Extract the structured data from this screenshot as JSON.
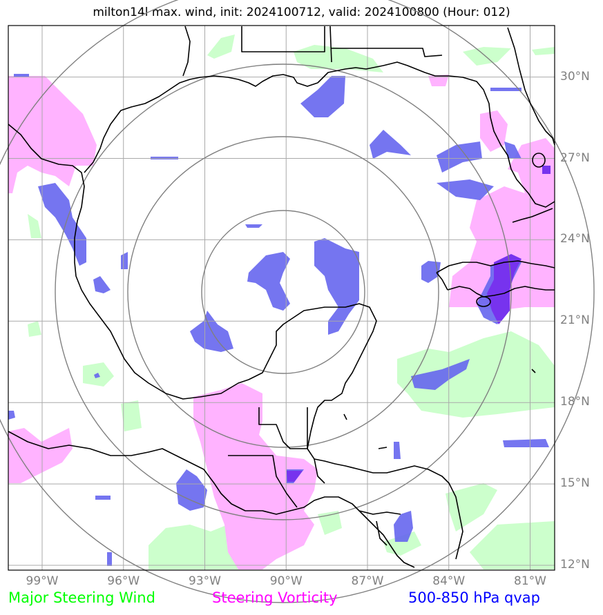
{
  "title": "milton14l max. wind, init: 2024100712, valid: 2024100800 (Hour: 012)",
  "latitudes": [
    {
      "label": "30°N",
      "lat": 30
    },
    {
      "label": "27°N",
      "lat": 27
    },
    {
      "label": "24°N",
      "lat": 24
    },
    {
      "label": "21°N",
      "lat": 21
    },
    {
      "label": "18°N",
      "lat": 18
    },
    {
      "label": "15°N",
      "lat": 15
    },
    {
      "label": "12°N",
      "lat": 12
    }
  ],
  "longitudes": [
    {
      "label": "99°W",
      "lon": -99
    },
    {
      "label": "96°W",
      "lon": -96
    },
    {
      "label": "93°W",
      "lon": -93
    },
    {
      "label": "90°W",
      "lon": -90
    },
    {
      "label": "87°W",
      "lon": -87
    },
    {
      "label": "84°W",
      "lon": -84
    },
    {
      "label": "81°W",
      "lon": -81
    }
  ],
  "legend": [
    {
      "label": "Major Steering Wind",
      "color": "#00ff00"
    },
    {
      "label": "Steering Vorticity",
      "color": "#ff00ff"
    },
    {
      "label": "500-850 hPa qvap",
      "color": "#0000ff"
    }
  ],
  "range_rings": {
    "count": 4,
    "color": "#808080"
  },
  "colors": {
    "wind_fill": "#ccffcc",
    "vorticity_fill": "#ffb3ff",
    "qvap_fill": "#6666ee",
    "gridline": "#a9a9a9",
    "coastline": "#000000"
  }
}
